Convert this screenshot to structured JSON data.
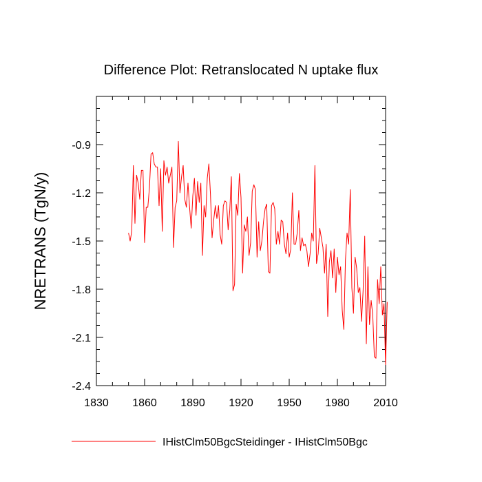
{
  "chart_data": {
    "type": "line",
    "title": "Difference Plot: Retranslocated N uptake flux",
    "ylabel": "NRETRANS  (TgN/y)",
    "xlabel": "",
    "xlim": [
      1830,
      2010
    ],
    "ylim": [
      -2.4,
      -0.6
    ],
    "x_ticks": [
      1830,
      1860,
      1890,
      1920,
      1950,
      1980,
      2010
    ],
    "y_ticks": [
      -2.4,
      -2.1,
      -1.8,
      -1.5,
      -1.2,
      -0.9
    ],
    "y_tick_labels": [
      "-2.4",
      "-2.1",
      "-1.8",
      "-1.5",
      "-1.2",
      "-0.9"
    ],
    "x_tick_labels": [
      "1830",
      "1860",
      "1890",
      "1920",
      "1950",
      "1980",
      "2010"
    ],
    "grid": false,
    "legend": "bottom-left",
    "series": [
      {
        "name": "IHistClm50BgcSteidinger - IHistClm50Bgc",
        "color": "#ff0000",
        "x_start": 1850,
        "values": [
          -1.45,
          -1.5,
          -1.44,
          -1.03,
          -1.39,
          -1.09,
          -1.14,
          -1.24,
          -1.06,
          -1.06,
          -1.51,
          -1.29,
          -1.29,
          -1.17,
          -0.96,
          -0.95,
          -1.02,
          -1.04,
          -1.04,
          -1.28,
          -1.05,
          -1.44,
          -1.0,
          -1.09,
          -1.04,
          -1.14,
          -1.09,
          -1.04,
          -1.54,
          -1.29,
          -1.25,
          -0.88,
          -1.2,
          -1.1,
          -1.03,
          -1.24,
          -1.29,
          -1.14,
          -1.29,
          -1.42,
          -1.22,
          -1.11,
          -1.34,
          -1.13,
          -1.26,
          -1.14,
          -1.59,
          -1.28,
          -1.35,
          -1.11,
          -1.02,
          -1.21,
          -1.48,
          -1.37,
          -1.28,
          -1.36,
          -1.28,
          -1.46,
          -1.52,
          -1.28,
          -1.25,
          -1.26,
          -1.43,
          -1.31,
          -1.1,
          -1.81,
          -1.77,
          -1.27,
          -1.34,
          -1.08,
          -1.23,
          -1.7,
          -1.4,
          -1.44,
          -1.35,
          -1.59,
          -1.51,
          -1.19,
          -1.15,
          -1.18,
          -1.6,
          -1.38,
          -1.56,
          -1.5,
          -1.38,
          -1.3,
          -1.27,
          -1.69,
          -1.7,
          -1.28,
          -1.26,
          -1.3,
          -1.52,
          -1.44,
          -1.52,
          -1.37,
          -1.38,
          -1.52,
          -1.58,
          -1.45,
          -1.6,
          -1.55,
          -1.2,
          -1.52,
          -1.52,
          -1.45,
          -1.31,
          -1.56,
          -1.48,
          -1.53,
          -1.52,
          -1.56,
          -1.66,
          -1.58,
          -1.45,
          -1.5,
          -1.03,
          -1.64,
          -1.58,
          -1.42,
          -1.48,
          -1.54,
          -1.7,
          -1.52,
          -1.97,
          -1.63,
          -1.56,
          -1.73,
          -1.55,
          -1.82,
          -1.6,
          -1.71,
          -1.66,
          -1.93,
          -2.05,
          -1.62,
          -1.45,
          -1.52,
          -1.18,
          -1.79,
          -1.95,
          -1.6,
          -1.67,
          -1.82,
          -1.79,
          -2.0,
          -1.81,
          -1.47,
          -2.14,
          -1.66,
          -2.02,
          -1.87,
          -1.96,
          -2.22,
          -2.23,
          -1.74,
          -1.89,
          -1.66,
          -1.96,
          -1.89,
          -2.27,
          -1.88
        ]
      }
    ]
  }
}
